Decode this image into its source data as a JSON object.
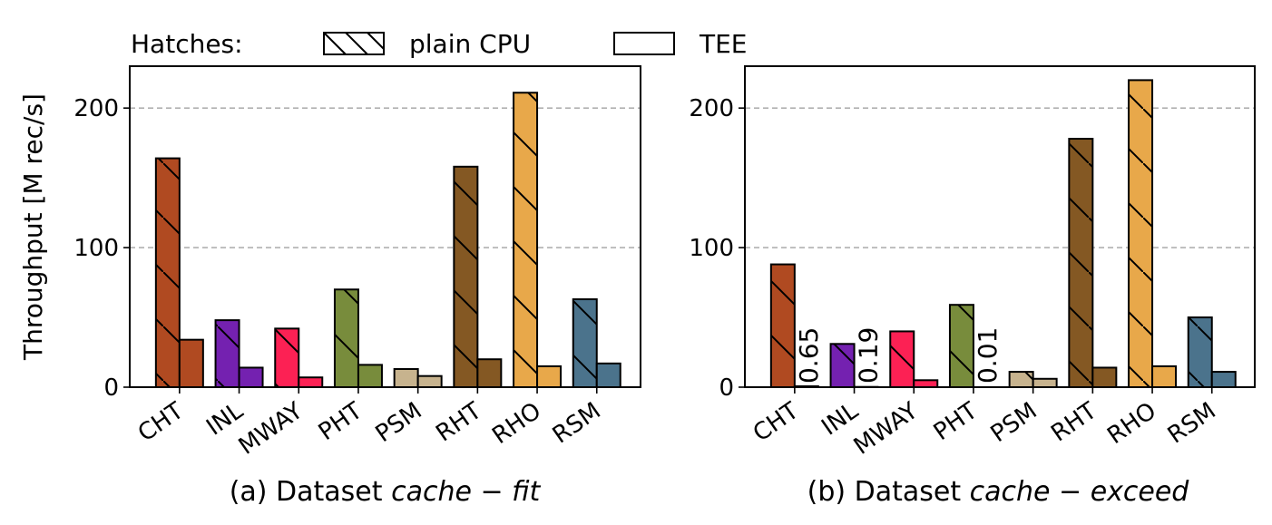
{
  "legend": {
    "prefix": "Hatches:",
    "items": [
      {
        "label": "plain CPU",
        "hatched": true
      },
      {
        "label": "TEE",
        "hatched": false
      }
    ]
  },
  "ylabel": "Throughput [M rec/s]",
  "colors": {
    "CHT": "#b04a21",
    "INL": "#7421b0",
    "MWAY": "#fc2154",
    "PHT": "#788c3c",
    "PSM": "#c7b38e",
    "RHT": "#845823",
    "RHO": "#e8a84a",
    "RSM": "#4b738c"
  },
  "chart_data": [
    {
      "type": "bar",
      "title_prefix": "(a) Dataset ",
      "title_italic": "cache − fit",
      "categories": [
        "CHT",
        "INL",
        "MWAY",
        "PHT",
        "PSM",
        "RHT",
        "RHO",
        "RSM"
      ],
      "series": [
        {
          "name": "plain CPU",
          "values": [
            164,
            48,
            42,
            70,
            13,
            158,
            211,
            63
          ]
        },
        {
          "name": "TEE",
          "values": [
            34,
            14,
            7,
            16,
            8,
            20,
            15,
            17
          ]
        }
      ],
      "annotations": [],
      "ylim": [
        0,
        230
      ],
      "yticks": [
        0,
        100,
        200
      ],
      "grid": "y-dashed"
    },
    {
      "type": "bar",
      "title_prefix": "(b) Dataset ",
      "title_italic": "cache − exceed",
      "categories": [
        "CHT",
        "INL",
        "MWAY",
        "PHT",
        "PSM",
        "RHT",
        "RHO",
        "RSM"
      ],
      "series": [
        {
          "name": "plain CPU",
          "values": [
            88,
            31,
            40,
            59,
            11,
            178,
            220,
            50
          ]
        },
        {
          "name": "TEE",
          "values": [
            0.65,
            0.19,
            5,
            0.01,
            6,
            14,
            15,
            11
          ]
        }
      ],
      "annotations": [
        {
          "category": "CHT",
          "text": "0.65"
        },
        {
          "category": "INL",
          "text": "0.19"
        },
        {
          "category": "PHT",
          "text": "0.01"
        }
      ],
      "ylim": [
        0,
        230
      ],
      "yticks": [
        0,
        100,
        200
      ],
      "grid": "y-dashed"
    }
  ]
}
